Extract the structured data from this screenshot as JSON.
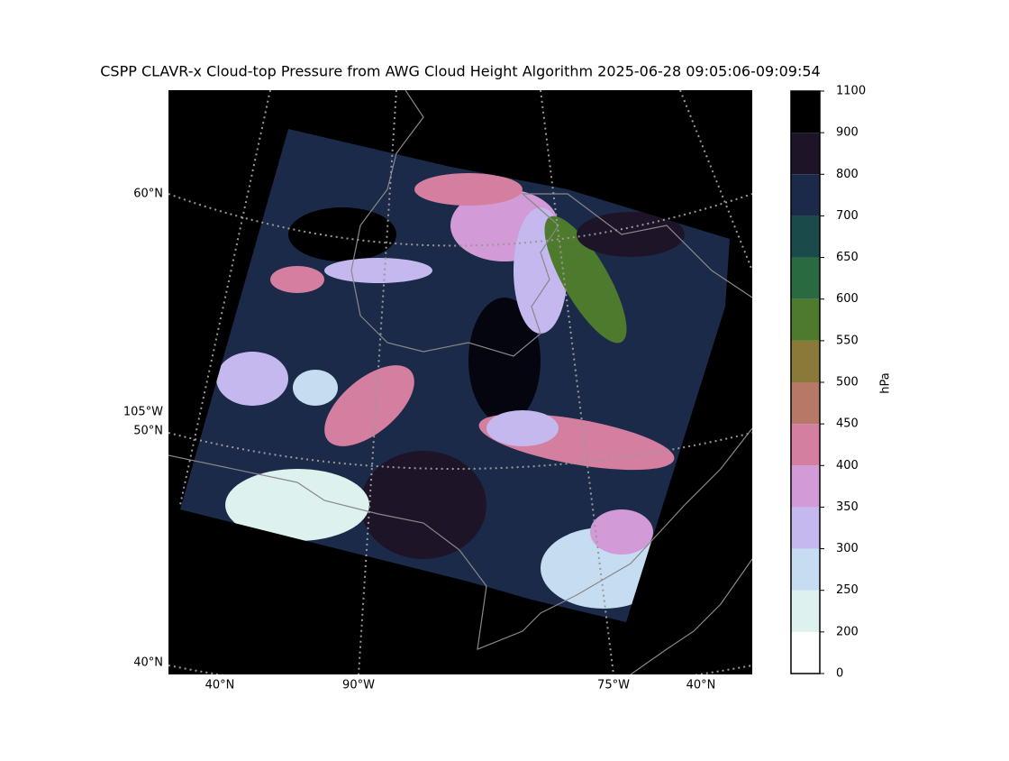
{
  "title": "CSPP CLAVR-x Cloud-top Pressure from AWG Cloud Height Algorithm 2025-06-28 09:05:06-09:09:54",
  "map": {
    "left_labels": [
      "60°N",
      "105°W",
      "50°N",
      "40°N"
    ],
    "bottom_labels": [
      "40°N",
      "90°W",
      "75°W",
      "40°N"
    ]
  },
  "colorbar": {
    "label": "hPa",
    "ticks": [
      0,
      200,
      250,
      300,
      350,
      400,
      450,
      500,
      550,
      600,
      650,
      700,
      800,
      900,
      1100
    ],
    "colors": [
      "#ffffff",
      "#ddf2ee",
      "#c6dcf0",
      "#c4b8ee",
      "#d29ad6",
      "#d47ea0",
      "#b87868",
      "#8a7a3a",
      "#4e7a2e",
      "#2a6a40",
      "#1a4a4a",
      "#1c2a4a",
      "#1e1428",
      "#000000"
    ]
  }
}
